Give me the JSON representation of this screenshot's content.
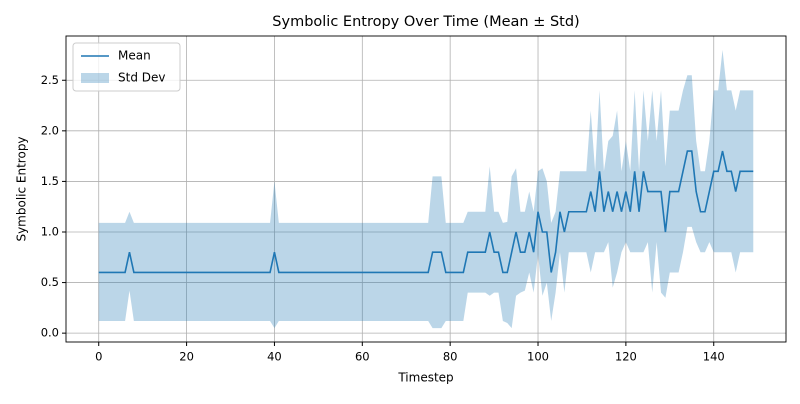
{
  "chart_data": {
    "type": "line",
    "title": "Symbolic Entropy Over Time (Mean ± Std)",
    "x_label": "Timestep",
    "y_label": "Symbolic Entropy",
    "x": [
      0,
      1,
      2,
      3,
      4,
      5,
      6,
      7,
      8,
      9,
      10,
      11,
      12,
      13,
      14,
      15,
      16,
      17,
      18,
      19,
      20,
      21,
      22,
      23,
      24,
      25,
      26,
      27,
      28,
      29,
      30,
      31,
      32,
      33,
      34,
      35,
      36,
      37,
      38,
      39,
      40,
      41,
      42,
      43,
      44,
      45,
      46,
      47,
      48,
      49,
      50,
      51,
      52,
      53,
      54,
      55,
      56,
      57,
      58,
      59,
      60,
      61,
      62,
      63,
      64,
      65,
      66,
      67,
      68,
      69,
      70,
      71,
      72,
      73,
      74,
      75,
      76,
      77,
      78,
      79,
      80,
      81,
      82,
      83,
      84,
      85,
      86,
      87,
      88,
      89,
      90,
      91,
      92,
      93,
      94,
      95,
      96,
      97,
      98,
      99,
      100,
      101,
      102,
      103,
      104,
      105,
      106,
      107,
      108,
      109,
      110,
      111,
      112,
      113,
      114,
      115,
      116,
      117,
      118,
      119,
      120,
      121,
      122,
      123,
      124,
      125,
      126,
      127,
      128,
      129,
      130,
      131,
      132,
      133,
      134,
      135,
      136,
      137,
      138,
      139,
      140,
      141,
      142,
      143,
      144,
      145,
      146,
      147,
      148,
      149
    ],
    "series": [
      {
        "name": "Mean",
        "color": "#1f77b4",
        "values": [
          0.6,
          0.6,
          0.6,
          0.6,
          0.6,
          0.6,
          0.6,
          0.8,
          0.6,
          0.6,
          0.6,
          0.6,
          0.6,
          0.6,
          0.6,
          0.6,
          0.6,
          0.6,
          0.6,
          0.6,
          0.6,
          0.6,
          0.6,
          0.6,
          0.6,
          0.6,
          0.6,
          0.6,
          0.6,
          0.6,
          0.6,
          0.6,
          0.6,
          0.6,
          0.6,
          0.6,
          0.6,
          0.6,
          0.6,
          0.6,
          0.8,
          0.6,
          0.6,
          0.6,
          0.6,
          0.6,
          0.6,
          0.6,
          0.6,
          0.6,
          0.6,
          0.6,
          0.6,
          0.6,
          0.6,
          0.6,
          0.6,
          0.6,
          0.6,
          0.6,
          0.6,
          0.6,
          0.6,
          0.6,
          0.6,
          0.6,
          0.6,
          0.6,
          0.6,
          0.6,
          0.6,
          0.6,
          0.6,
          0.6,
          0.6,
          0.6,
          0.8,
          0.8,
          0.8,
          0.6,
          0.6,
          0.6,
          0.6,
          0.6,
          0.8,
          0.8,
          0.8,
          0.8,
          0.8,
          1.0,
          0.8,
          0.8,
          0.6,
          0.6,
          0.8,
          1.0,
          0.8,
          0.8,
          1.0,
          0.8,
          1.2,
          1.0,
          1.0,
          0.6,
          0.8,
          1.2,
          1.0,
          1.2,
          1.2,
          1.2,
          1.2,
          1.2,
          1.4,
          1.2,
          1.6,
          1.2,
          1.4,
          1.2,
          1.4,
          1.2,
          1.4,
          1.2,
          1.6,
          1.2,
          1.6,
          1.4,
          1.4,
          1.4,
          1.4,
          1.0,
          1.4,
          1.4,
          1.4,
          1.6,
          1.8,
          1.8,
          1.4,
          1.2,
          1.2,
          1.4,
          1.6,
          1.6,
          1.8,
          1.6,
          1.6,
          1.4,
          1.6,
          1.6,
          1.6,
          1.6
        ]
      },
      {
        "name": "Std Dev",
        "color": "#1f77b4",
        "alpha": 0.3,
        "lower": [
          0.12,
          0.12,
          0.12,
          0.12,
          0.12,
          0.12,
          0.12,
          0.42,
          0.12,
          0.12,
          0.12,
          0.12,
          0.12,
          0.12,
          0.12,
          0.12,
          0.12,
          0.12,
          0.12,
          0.12,
          0.12,
          0.12,
          0.12,
          0.12,
          0.12,
          0.12,
          0.12,
          0.12,
          0.12,
          0.12,
          0.12,
          0.12,
          0.12,
          0.12,
          0.12,
          0.12,
          0.12,
          0.12,
          0.12,
          0.12,
          0.05,
          0.12,
          0.12,
          0.12,
          0.12,
          0.12,
          0.12,
          0.12,
          0.12,
          0.12,
          0.12,
          0.12,
          0.12,
          0.12,
          0.12,
          0.12,
          0.12,
          0.12,
          0.12,
          0.12,
          0.12,
          0.12,
          0.12,
          0.12,
          0.12,
          0.12,
          0.12,
          0.12,
          0.12,
          0.12,
          0.12,
          0.12,
          0.12,
          0.12,
          0.12,
          0.12,
          0.05,
          0.05,
          0.05,
          0.12,
          0.12,
          0.12,
          0.12,
          0.12,
          0.4,
          0.4,
          0.4,
          0.4,
          0.4,
          0.37,
          0.4,
          0.4,
          0.12,
          0.1,
          0.05,
          0.37,
          0.4,
          0.42,
          0.6,
          0.4,
          0.78,
          0.37,
          0.5,
          0.12,
          0.4,
          0.8,
          0.4,
          0.8,
          0.8,
          0.8,
          0.8,
          0.8,
          0.6,
          0.8,
          0.8,
          0.8,
          0.9,
          0.45,
          0.6,
          0.8,
          0.9,
          0.8,
          0.8,
          0.8,
          0.8,
          0.9,
          0.4,
          0.9,
          0.4,
          0.35,
          0.6,
          0.6,
          0.6,
          0.8,
          1.05,
          1.05,
          0.9,
          0.8,
          0.8,
          0.9,
          0.8,
          0.8,
          0.8,
          0.8,
          0.8,
          0.6,
          0.8,
          0.8,
          0.8,
          0.8
        ],
        "upper": [
          1.09,
          1.09,
          1.09,
          1.09,
          1.09,
          1.09,
          1.09,
          1.2,
          1.09,
          1.09,
          1.09,
          1.09,
          1.09,
          1.09,
          1.09,
          1.09,
          1.09,
          1.09,
          1.09,
          1.09,
          1.09,
          1.09,
          1.09,
          1.09,
          1.09,
          1.09,
          1.09,
          1.09,
          1.09,
          1.09,
          1.09,
          1.09,
          1.09,
          1.09,
          1.09,
          1.09,
          1.09,
          1.09,
          1.09,
          1.09,
          1.5,
          1.09,
          1.09,
          1.09,
          1.09,
          1.09,
          1.09,
          1.09,
          1.09,
          1.09,
          1.09,
          1.09,
          1.09,
          1.09,
          1.09,
          1.09,
          1.09,
          1.09,
          1.09,
          1.09,
          1.09,
          1.09,
          1.09,
          1.09,
          1.09,
          1.09,
          1.09,
          1.09,
          1.09,
          1.09,
          1.09,
          1.09,
          1.09,
          1.09,
          1.09,
          1.09,
          1.55,
          1.55,
          1.55,
          1.09,
          1.09,
          1.09,
          1.09,
          1.09,
          1.2,
          1.2,
          1.2,
          1.2,
          1.2,
          1.65,
          1.2,
          1.2,
          1.09,
          1.1,
          1.55,
          1.63,
          1.2,
          1.2,
          1.4,
          1.2,
          1.6,
          1.63,
          1.5,
          1.09,
          1.2,
          1.6,
          1.6,
          1.6,
          1.6,
          1.6,
          1.6,
          1.6,
          2.2,
          1.6,
          2.4,
          1.6,
          1.9,
          1.95,
          2.2,
          1.6,
          1.9,
          1.6,
          2.4,
          1.6,
          2.4,
          1.9,
          2.4,
          1.9,
          2.4,
          1.65,
          2.2,
          2.2,
          2.2,
          2.4,
          2.55,
          2.55,
          1.9,
          1.6,
          1.6,
          1.9,
          2.4,
          2.4,
          2.8,
          2.4,
          2.4,
          2.2,
          2.4,
          2.4,
          2.4,
          2.4
        ]
      }
    ],
    "xlim": [
      -7.45,
      156.45
    ],
    "xticks": [
      0,
      20,
      40,
      60,
      80,
      100,
      120,
      140
    ],
    "ylim": [
      -0.0875,
      2.9375
    ],
    "yticks": [
      {
        "value": 0,
        "label": "0.0"
      },
      0.5,
      {
        "value": 1,
        "label": "1.0"
      },
      1.5,
      {
        "value": 2,
        "label": "2.0"
      },
      2.5
    ],
    "grid": true,
    "legend": "upper left"
  }
}
